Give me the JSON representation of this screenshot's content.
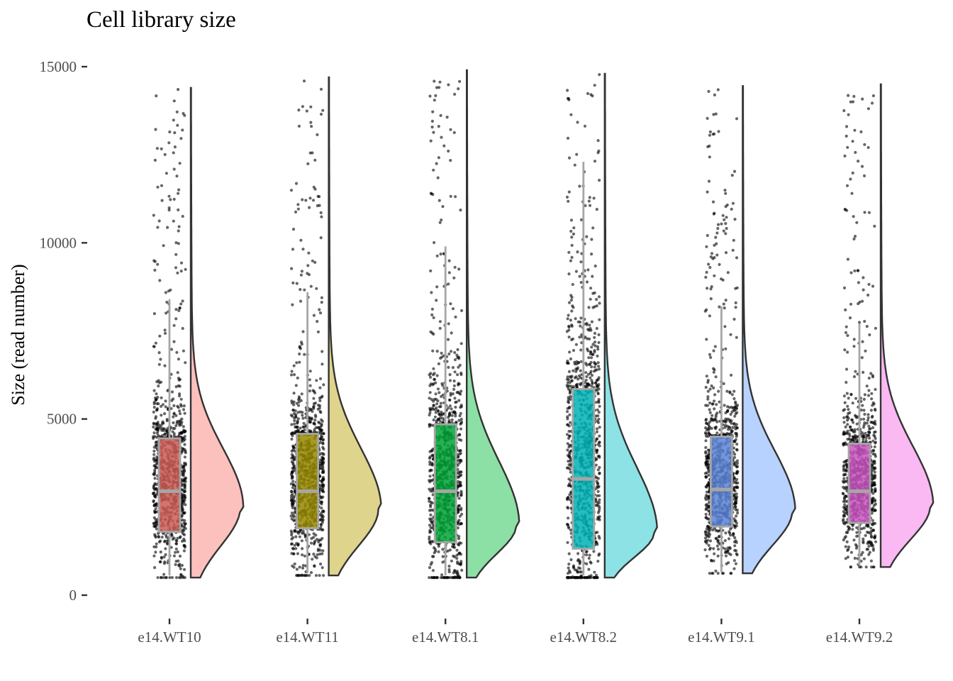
{
  "chart_data": {
    "type": "raincloud",
    "title": "Cell library size",
    "xlabel": "",
    "ylabel": "Size (read number)",
    "ylim": [
      0,
      15000
    ],
    "yticks": [
      0,
      5000,
      10000,
      15000
    ],
    "ytick_labels": [
      "0",
      "5000",
      "10000",
      "15000"
    ],
    "grid": false,
    "legend": "none",
    "categories": [
      "e14.WT10",
      "e14.WT11",
      "e14.WT8.1",
      "e14.WT8.2",
      "e14.WT9.1",
      "e14.WT9.2"
    ],
    "series": [
      {
        "colors": {
          "box": "#cd5c55",
          "violin": "#f8766d"
        },
        "box": {
          "whisker_low": 560,
          "q1": 1800,
          "median": 2950,
          "q3": 4450,
          "whisker_high": 8400
        },
        "violin": {
          "min": 500,
          "max": 14400,
          "mode": 2500
        }
      },
      {
        "colors": {
          "box": "#958800",
          "violin": "#b79f00"
        },
        "box": {
          "whisker_low": 620,
          "q1": 1900,
          "median": 2950,
          "q3": 4580,
          "whisker_high": 8600
        },
        "violin": {
          "min": 560,
          "max": 14700,
          "mode": 2450
        }
      },
      {
        "colors": {
          "box": "#00a336",
          "violin": "#00ba38"
        },
        "box": {
          "whisker_low": 560,
          "q1": 1500,
          "median": 2950,
          "q3": 4850,
          "whisker_high": 9900
        },
        "violin": {
          "min": 500,
          "max": 14900,
          "mode": 2000
        }
      },
      {
        "colors": {
          "box": "#00b2b6",
          "violin": "#00bfc4"
        },
        "box": {
          "whisker_low": 560,
          "q1": 1320,
          "median": 3300,
          "q3": 5850,
          "whisker_high": 12300
        },
        "violin": {
          "min": 500,
          "max": 14800,
          "mode": 1800
        }
      },
      {
        "colors": {
          "box": "#5a84d6",
          "violin": "#619cff"
        },
        "box": {
          "whisker_low": 650,
          "q1": 1950,
          "median": 3000,
          "q3": 4500,
          "whisker_high": 8200
        },
        "violin": {
          "min": 620,
          "max": 14450,
          "mode": 2400
        }
      },
      {
        "colors": {
          "box": "#c955c0",
          "violin": "#f564e3"
        },
        "box": {
          "whisker_low": 850,
          "q1": 2050,
          "median": 2950,
          "q3": 4300,
          "whisker_high": 7700
        },
        "violin": {
          "min": 800,
          "max": 14500,
          "mode": 2550
        }
      }
    ]
  }
}
